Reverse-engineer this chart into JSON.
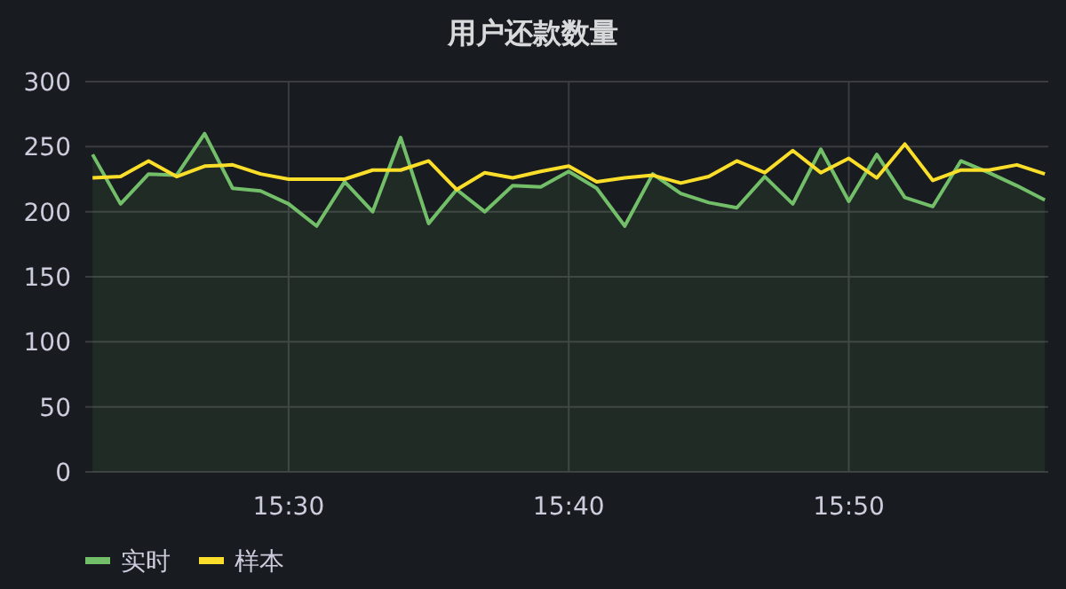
{
  "chart_data": {
    "type": "line",
    "title": "用户还款数量",
    "x": [
      15.38333,
      15.4,
      15.41667,
      15.43333,
      15.45,
      15.46667,
      15.48333,
      15.5,
      15.51667,
      15.53333,
      15.55,
      15.56667,
      15.58333,
      15.6,
      15.61667,
      15.63333,
      15.65,
      15.66667,
      15.68333,
      15.7,
      15.71667,
      15.73333,
      15.75,
      15.76667,
      15.78333,
      15.8,
      15.81667,
      15.83333,
      15.85,
      15.86667,
      15.88333,
      15.9,
      15.91667,
      15.93333,
      15.95
    ],
    "series": [
      {
        "name": "实时",
        "color": "#73bf69",
        "type": "area",
        "values": [
          244,
          206,
          229,
          228,
          260,
          218,
          216,
          206,
          189,
          223,
          200,
          257,
          191,
          217,
          200,
          220,
          219,
          231,
          218,
          189,
          229,
          214,
          207,
          203,
          227,
          206,
          248,
          208,
          244,
          211,
          204,
          239,
          230,
          220,
          209
        ]
      },
      {
        "name": "样本",
        "color": "#fade2a",
        "values": [
          226,
          227,
          239,
          227,
          235,
          236,
          229,
          225,
          225,
          225,
          232,
          232,
          239,
          217,
          230,
          226,
          231,
          235,
          223,
          226,
          228,
          222,
          227,
          239,
          230,
          247,
          230,
          241,
          226,
          252,
          224,
          232,
          232,
          236,
          229
        ]
      }
    ],
    "xlim": [
      15.379,
      15.952
    ],
    "ylim": [
      0,
      300
    ],
    "xticks": [
      {
        "value": 15.5,
        "label": "15:30"
      },
      {
        "value": 15.66667,
        "label": "15:40"
      },
      {
        "value": 15.83333,
        "label": "15:50"
      }
    ],
    "yticks": [
      0,
      50,
      100,
      150,
      200,
      250,
      300
    ],
    "grid": true,
    "legend": "bottom left"
  }
}
